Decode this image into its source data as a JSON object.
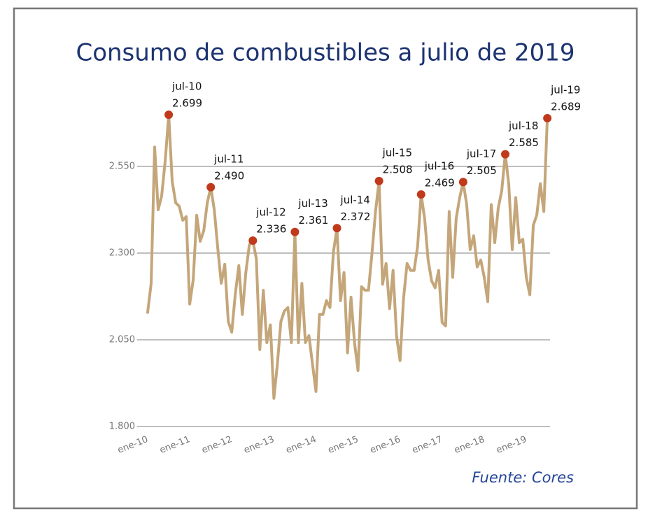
{
  "chart_data": {
    "type": "line",
    "title": "Consumo de combustibles a julio de 2019",
    "source": "Fuente: Cores",
    "color": "#c4a67a",
    "marker_color": "#c0391b",
    "grid": true,
    "categories": [
      "ene-10",
      null,
      null,
      null,
      null,
      null,
      null,
      null,
      null,
      null,
      null,
      null,
      "ene-11",
      null,
      null,
      null,
      null,
      null,
      null,
      null,
      null,
      null,
      null,
      null,
      "ene-12",
      null,
      null,
      null,
      null,
      null,
      null,
      null,
      null,
      null,
      null,
      null,
      "ene-13",
      null,
      null,
      null,
      null,
      null,
      null,
      null,
      null,
      null,
      null,
      null,
      "ene-14",
      null,
      null,
      null,
      null,
      null,
      null,
      null,
      null,
      null,
      null,
      null,
      "ene-15",
      null,
      null,
      null,
      null,
      null,
      null,
      null,
      null,
      null,
      null,
      null,
      "ene-16",
      null,
      null,
      null,
      null,
      null,
      null,
      null,
      null,
      null,
      null,
      null,
      "ene-17",
      null,
      null,
      null,
      null,
      null,
      null,
      null,
      null,
      null,
      null,
      null,
      "ene-18",
      null,
      null,
      null,
      null,
      null,
      null,
      null,
      null,
      null,
      null,
      null,
      "ene-19",
      null,
      null,
      null,
      null,
      null,
      null
    ],
    "values": [
      2129,
      2213,
      2606,
      2425,
      2465,
      2566,
      2699,
      2506,
      2445,
      2435,
      2395,
      2405,
      2153,
      2223,
      2409,
      2334,
      2365,
      2445,
      2490,
      2425,
      2314,
      2213,
      2268,
      2103,
      2072,
      2183,
      2264,
      2123,
      2244,
      2324,
      2336,
      2284,
      2022,
      2193,
      2042,
      2093,
      1881,
      1981,
      2103,
      2133,
      2143,
      2042,
      2361,
      2042,
      2213,
      2042,
      2062,
      1981,
      1901,
      2123,
      2123,
      2163,
      2143,
      2304,
      2372,
      2163,
      2244,
      2012,
      2173,
      2042,
      1961,
      2203,
      2193,
      2193,
      2300,
      2420,
      2508,
      2210,
      2270,
      2140,
      2250,
      2060,
      1990,
      2170,
      2270,
      2250,
      2250,
      2320,
      2469,
      2400,
      2280,
      2220,
      2200,
      2250,
      2100,
      2090,
      2420,
      2230,
      2400,
      2460,
      2505,
      2440,
      2310,
      2350,
      2260,
      2280,
      2230,
      2160,
      2440,
      2330,
      2430,
      2480,
      2585,
      2500,
      2310,
      2460,
      2330,
      2340,
      2230,
      2180,
      2380,
      2410,
      2500,
      2420,
      2689
    ],
    "point_labels": [
      null,
      null,
      null,
      null,
      null,
      null,
      "jul-10",
      null,
      null,
      null,
      null,
      null,
      null,
      null,
      null,
      null,
      null,
      null,
      "jul-11",
      null,
      null,
      null,
      null,
      null,
      null,
      null,
      null,
      null,
      null,
      null,
      "jul-12",
      null,
      null,
      null,
      null,
      null,
      null,
      null,
      null,
      null,
      null,
      null,
      "jul-13",
      null,
      null,
      null,
      null,
      null,
      null,
      null,
      null,
      null,
      null,
      null,
      "jul-14",
      null,
      null,
      null,
      null,
      null,
      null,
      null,
      null,
      null,
      null,
      null,
      "jul-15",
      null,
      null,
      null,
      null,
      null,
      null,
      null,
      null,
      null,
      null,
      null,
      "jul-16",
      null,
      null,
      null,
      null,
      null,
      null,
      null,
      null,
      null,
      null,
      null,
      "jul-17",
      null,
      null,
      null,
      null,
      null,
      null,
      null,
      null,
      null,
      null,
      null,
      "jul-18",
      null,
      null,
      null,
      null,
      null,
      null,
      null,
      null,
      null,
      null,
      null,
      "jul-19"
    ],
    "value_labels": [
      null,
      null,
      null,
      null,
      null,
      null,
      "2.699",
      null,
      null,
      null,
      null,
      null,
      null,
      null,
      null,
      null,
      null,
      null,
      "2.490",
      null,
      null,
      null,
      null,
      null,
      null,
      null,
      null,
      null,
      null,
      null,
      "2.336",
      null,
      null,
      null,
      null,
      null,
      null,
      null,
      null,
      null,
      null,
      null,
      "2.361",
      null,
      null,
      null,
      null,
      null,
      null,
      null,
      null,
      null,
      null,
      null,
      "2.372",
      null,
      null,
      null,
      null,
      null,
      null,
      null,
      null,
      null,
      null,
      null,
      "2.508",
      null,
      null,
      null,
      null,
      null,
      null,
      null,
      null,
      null,
      null,
      null,
      "2.469",
      null,
      null,
      null,
      null,
      null,
      null,
      null,
      null,
      null,
      null,
      null,
      "2.505",
      null,
      null,
      null,
      null,
      null,
      null,
      null,
      null,
      null,
      null,
      null,
      "2.585",
      null,
      null,
      null,
      null,
      null,
      null,
      null,
      null,
      null,
      null,
      null,
      "2.689"
    ],
    "ylim": [
      1800,
      2800
    ],
    "yticks": [
      {
        "value": 1800,
        "label": "1.800"
      },
      {
        "value": 2050,
        "label": "2.050"
      },
      {
        "value": 2300,
        "label": "2.300"
      },
      {
        "value": 2550,
        "label": "2.550"
      }
    ]
  }
}
